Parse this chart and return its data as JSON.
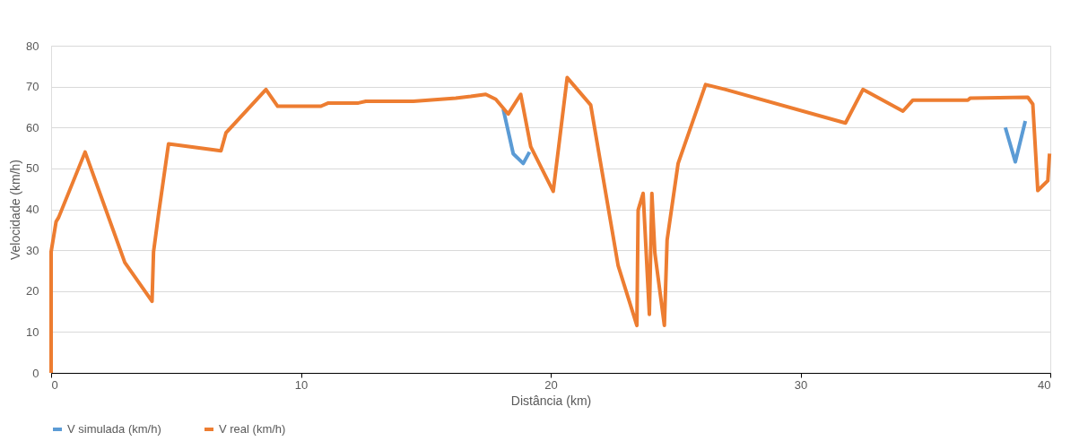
{
  "chart_data": {
    "type": "line",
    "xlabel": "Distância (km)",
    "ylabel": "Velocidade (km/h)",
    "xlim": [
      0,
      40
    ],
    "xticks": [
      0,
      10,
      20,
      30,
      40
    ],
    "ylim": [
      0,
      80
    ],
    "yticks": [
      0,
      10,
      20,
      30,
      40,
      50,
      60,
      70,
      80
    ],
    "grid": "y",
    "legend": "bottom",
    "line_style": "solid",
    "marker": "none",
    "series": [
      {
        "name": "V simulada (km/h)",
        "color": "#5b9bd5",
        "x": [
          18.1,
          18.5,
          18.9,
          19.15,
          28,
          38.2,
          38.6,
          39.0
        ],
        "values": [
          64.5,
          53.6,
          51.2,
          54,
          null,
          60,
          51.6,
          61.6
        ]
      },
      {
        "name": "V real (km/h)",
        "color": "#ed7d31",
        "x": [
          0,
          0,
          0.2,
          0.3,
          1.36,
          2.95,
          4.04,
          4.1,
          4.3,
          4.7,
          6.8,
          7.0,
          8.6,
          9.07,
          10.8,
          11.1,
          12.3,
          12.6,
          14.5,
          16.2,
          16.8,
          17.4,
          17.8,
          18.3,
          18.8,
          19.2,
          20.1,
          20.66,
          21.6,
          22.7,
          23.45,
          23.5,
          23.7,
          23.95,
          24.05,
          24.17,
          24.55,
          24.66,
          25.1,
          26.2,
          27,
          31.8,
          32.5,
          34.1,
          34.5,
          36.7,
          36.8,
          39.1,
          39.3,
          39.5,
          39.9,
          39.97
        ],
        "values": [
          0,
          29.6,
          37,
          38,
          54,
          27,
          17.5,
          29.6,
          38.8,
          56,
          54.3,
          58.7,
          69.3,
          65.2,
          65.2,
          66,
          66,
          66.4,
          66.4,
          67.2,
          67.6,
          68.1,
          66.9,
          63.3,
          68.1,
          55.3,
          44.4,
          72.2,
          65.5,
          26.2,
          11.6,
          39.8,
          43.9,
          14.3,
          43.9,
          29.3,
          11.6,
          32.5,
          51.2,
          70.5,
          69.3,
          61.1,
          69.3,
          64,
          66.7,
          66.7,
          67.2,
          67.4,
          65.7,
          44.6,
          47,
          53.6
        ]
      }
    ]
  }
}
